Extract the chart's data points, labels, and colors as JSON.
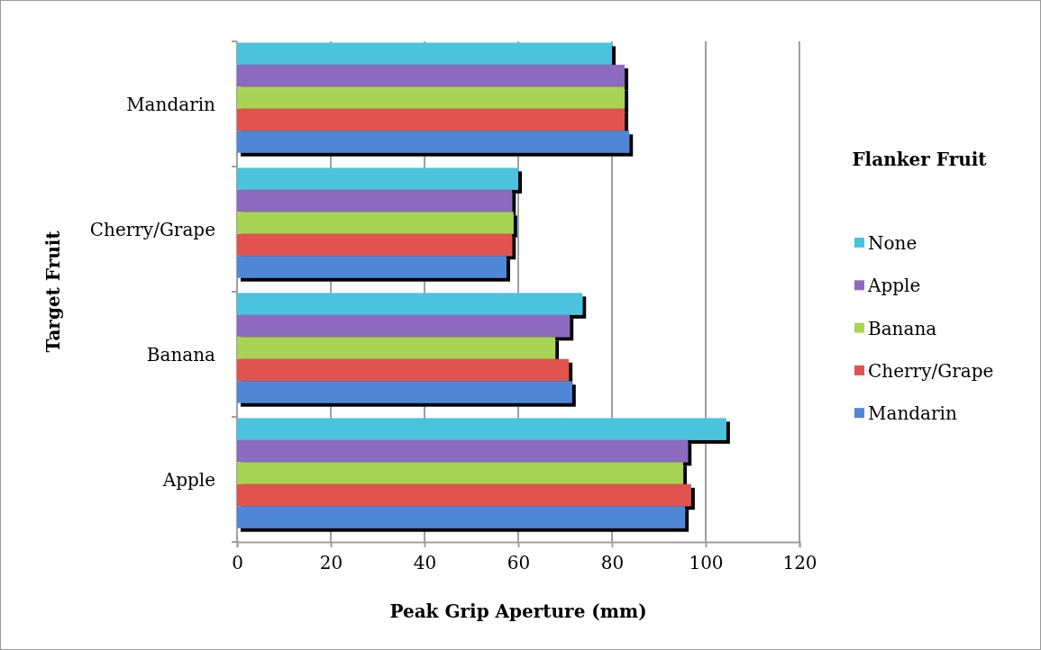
{
  "chart_data": {
    "type": "bar",
    "orientation": "horizontal",
    "xlabel": "Peak Grip Aperture (mm)",
    "ylabel": "Target Fruit",
    "legend_title": "Flanker Fruit",
    "categories": [
      "Mandarin",
      "Cherry/Grape",
      "Banana",
      "Apple"
    ],
    "series": [
      {
        "name": "None",
        "color": "#4bc3df",
        "values": [
          80,
          60,
          73.7,
          104.4
        ]
      },
      {
        "name": "Apple",
        "color": "#8c6bbf",
        "values": [
          82.7,
          58.7,
          71,
          96.2
        ]
      },
      {
        "name": "Banana",
        "color": "#a8d455",
        "values": [
          82.7,
          59,
          67.9,
          95.2
        ]
      },
      {
        "name": "Cherry/Grape",
        "color": "#e0524f",
        "values": [
          82.7,
          58.7,
          70.8,
          96.9
        ]
      },
      {
        "name": "Mandarin",
        "color": "#4f86d6",
        "values": [
          83.7,
          57.5,
          71.5,
          95.6
        ]
      }
    ],
    "xlim": [
      0,
      120
    ],
    "xticks": [
      0,
      20,
      40,
      60,
      80,
      100,
      120
    ],
    "grid": "x",
    "legend": "right"
  }
}
